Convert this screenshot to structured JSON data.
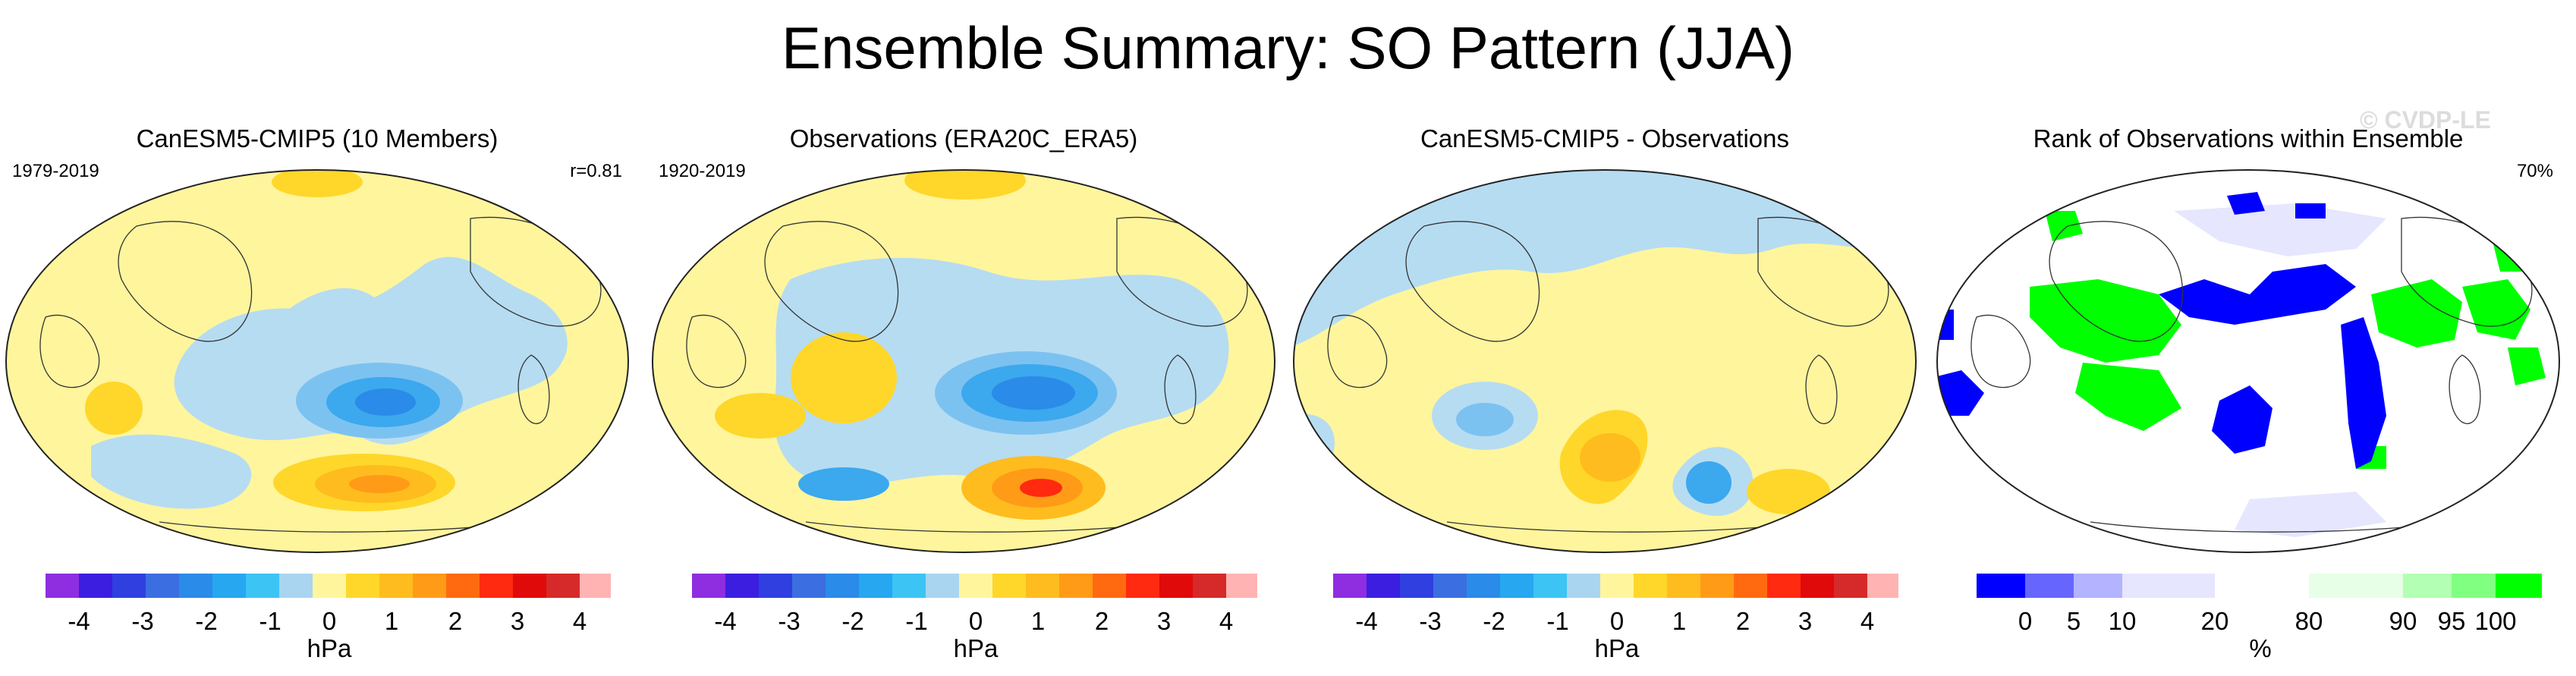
{
  "figure": {
    "title": "Ensemble Summary: SO Pattern (JJA)",
    "watermark": "© CVDP-LE"
  },
  "panels": [
    {
      "title": "CanESM5-CMIP5 (10 Members)",
      "left_label": "1979-2019",
      "right_label": "r=0.81"
    },
    {
      "title": "Observations (ERA20C_ERA5)",
      "left_label": "1920-2019",
      "right_label": ""
    },
    {
      "title": "CanESM5-CMIP5 - Observations",
      "left_label": "",
      "right_label": ""
    },
    {
      "title": "Rank of Observations within Ensemble",
      "left_label": "",
      "right_label": "70%"
    }
  ],
  "colorbars": {
    "hpa": {
      "unit": "hPa",
      "ticks": [
        "-4",
        "-3",
        "-2",
        "-1",
        "0",
        "1",
        "2",
        "3",
        "4"
      ],
      "colors": [
        "#8f2de1",
        "#3b1ee0",
        "#2f3fe0",
        "#3b6ee0",
        "#2a8be8",
        "#26a7f0",
        "#3cc4f5",
        "#a9d5f0",
        "#fff59d",
        "#ffd72a",
        "#ffbc1e",
        "#ff9b17",
        "#ff6a10",
        "#ff2a10",
        "#e00a0a",
        "#d62929",
        "#ffb3b3"
      ]
    },
    "rank": {
      "unit": "%",
      "ticks": [
        "0",
        "5",
        "10",
        "20",
        "80",
        "90",
        "95",
        "100"
      ],
      "colors": [
        "#0000ff",
        "#6666ff",
        "#b3b3ff",
        "#e6e6ff",
        "#ffffff",
        "#e6ffe6",
        "#b3ffb3",
        "#80ff80",
        "#00ff00"
      ]
    }
  }
}
